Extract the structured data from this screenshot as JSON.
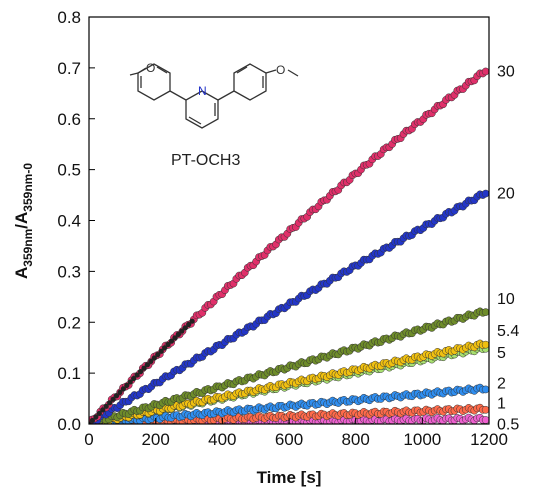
{
  "chart_data": {
    "type": "scatter",
    "xlabel": "Time [s]",
    "ylabel_main": "A",
    "ylabel_sub1": "359nm",
    "ylabel_mid": "/A",
    "ylabel_sub2": "359nm-0",
    "xlim": [
      0,
      1200
    ],
    "ylim": [
      0,
      0.8
    ],
    "xticks": [
      0,
      200,
      400,
      600,
      800,
      1000,
      1200
    ],
    "yticks": [
      0.0,
      0.1,
      0.2,
      0.3,
      0.4,
      0.5,
      0.6,
      0.7,
      0.8
    ],
    "ytick_labels": [
      "0.0",
      "0.1",
      "0.2",
      "0.3",
      "0.4",
      "0.5",
      "0.6",
      "0.7",
      "0.8"
    ],
    "grid": false,
    "series": [
      {
        "name": "30",
        "color": "#e0306a",
        "endpoint": [
          1190,
          0.695
        ],
        "curve": -0.16
      },
      {
        "name": "20",
        "color": "#2336c8",
        "endpoint": [
          1190,
          0.455
        ],
        "curve": -0.05
      },
      {
        "name": "10",
        "color": "#6e8c2a",
        "endpoint": [
          1190,
          0.222
        ],
        "curve": 0.0
      },
      {
        "name": "5.4",
        "color": "#f0c010",
        "endpoint": [
          1190,
          0.158
        ],
        "curve": 0.0
      },
      {
        "name": "5",
        "color": "#a8e070",
        "endpoint": [
          1190,
          0.15
        ],
        "curve": 0.0
      },
      {
        "name": "2",
        "color": "#2f8ef0",
        "endpoint": [
          1190,
          0.07
        ],
        "curve": 0.0
      },
      {
        "name": "1",
        "color": "#ff6a4a",
        "endpoint": [
          1190,
          0.03
        ],
        "curve": 0.0
      },
      {
        "name": "0.5",
        "color": "#ef60d0",
        "endpoint": [
          1190,
          0.01
        ],
        "curve": 0.0
      }
    ],
    "annotations": {
      "compound": "PT-OCH3",
      "nitrogen": "N",
      "oxygen": "O"
    }
  }
}
